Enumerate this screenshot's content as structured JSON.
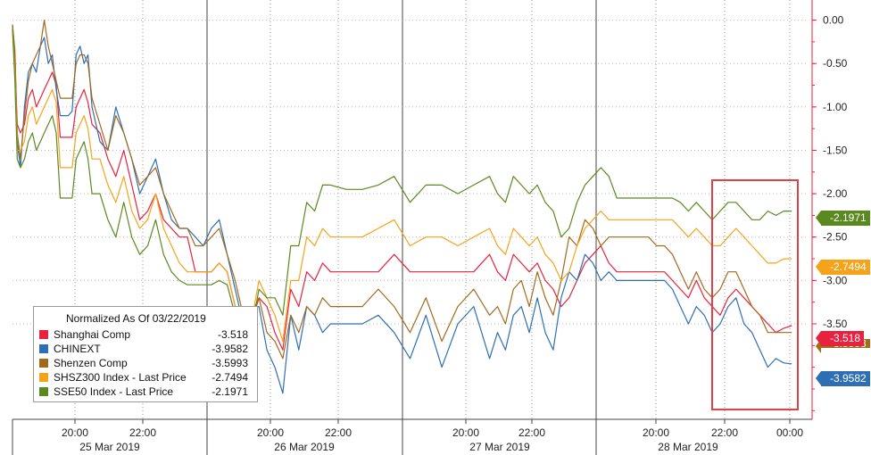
{
  "chart_data": {
    "type": "line",
    "title": "",
    "xlabel": "",
    "ylabel": "",
    "ylim": [
      -4.6,
      0.15
    ],
    "yticks": [
      "0.00",
      "-0.50",
      "-1.00",
      "-1.50",
      "-2.00",
      "-2.50",
      "-3.00",
      "-3.50"
    ],
    "ytick_values": [
      0,
      -0.5,
      -1.0,
      -1.5,
      -2.0,
      -2.5,
      -3.0,
      -3.5
    ],
    "time_ticks": [
      "20:00",
      "22:00",
      "20:00",
      "22:00",
      "20:00",
      "22:00",
      "20:00",
      "22:00",
      "00:00"
    ],
    "date_labels": [
      "25 Mar 2019",
      "26 Mar 2019",
      "27 Mar 2019",
      "28 Mar 2019"
    ],
    "legend": {
      "title": "Normalized As Of 03/22/2019",
      "placement": "bottom-left"
    },
    "series": [
      {
        "name": "Shanghai Comp",
        "color": "#e8223e",
        "last": "-3.518",
        "t": [
          0,
          0.3,
          0.6,
          1,
          1.5,
          2,
          2.5,
          3,
          3.5,
          4,
          4.5,
          5,
          5.5,
          6,
          6.5,
          7,
          7.5,
          8,
          8.5,
          9,
          9.5,
          10,
          11,
          12,
          13,
          14,
          15,
          16,
          17,
          18,
          19,
          20,
          21,
          22,
          23,
          24,
          25,
          26,
          27,
          28,
          29,
          30,
          31,
          32,
          33,
          34,
          35,
          36,
          37,
          38,
          39,
          40,
          42,
          44,
          46,
          48,
          50,
          52,
          54,
          56,
          58,
          60,
          61,
          62,
          63,
          64,
          65,
          66,
          67,
          68,
          69,
          70,
          71,
          72,
          73,
          74,
          75,
          76,
          77,
          78,
          79,
          80,
          81,
          82,
          83,
          84,
          85,
          86,
          87,
          88,
          89,
          90,
          91,
          92,
          93,
          94,
          95,
          96,
          97,
          98,
          99,
          100
        ],
        "v": [
          -0.1,
          -0.5,
          -1.2,
          -1.3,
          -1.2,
          -0.9,
          -0.8,
          -1.0,
          -0.9,
          -0.8,
          -0.7,
          -0.6,
          -0.75,
          -1.35,
          -1.35,
          -1.35,
          -1.35,
          -1.0,
          -0.9,
          -0.8,
          -0.95,
          -1.2,
          -1.3,
          -1.6,
          -1.8,
          -1.5,
          -1.9,
          -2.3,
          -2.2,
          -2.0,
          -2.3,
          -2.4,
          -2.5,
          -2.5,
          -2.9,
          -2.9,
          -2.9,
          -2.8,
          -2.9,
          -3.3,
          -3.4,
          -3.5,
          -3.2,
          -3.3,
          -3.6,
          -3.8,
          -3.1,
          -3.3,
          -2.9,
          -3.0,
          -2.8,
          -2.9,
          -2.9,
          -2.9,
          -2.9,
          -2.7,
          -2.9,
          -2.9,
          -2.9,
          -2.9,
          -2.9,
          -2.7,
          -2.9,
          -3.0,
          -2.7,
          -2.8,
          -2.9,
          -2.8,
          -3.0,
          -3.1,
          -3.3,
          -3.2,
          -3.0,
          -2.8,
          -2.7,
          -2.6,
          -2.8,
          -2.9,
          -2.9,
          -2.9,
          -2.9,
          -2.9,
          -2.9,
          -2.9,
          -3.0,
          -3.1,
          -3.2,
          -3.0,
          -3.2,
          -3.3,
          -3.4,
          -3.2,
          -3.1,
          -3.2,
          -3.3,
          -3.4,
          -3.5,
          -3.6,
          -3.55,
          -3.52
        ]
      },
      {
        "name": "CHINEXT",
        "color": "#2e6fb4",
        "last": "-3.9582",
        "t": [
          0,
          0.3,
          0.6,
          1,
          1.5,
          2,
          2.5,
          3,
          3.5,
          4,
          4.5,
          5,
          5.5,
          6,
          6.5,
          7,
          7.5,
          8,
          8.5,
          9,
          9.5,
          10,
          11,
          12,
          13,
          14,
          15,
          16,
          17,
          18,
          19,
          20,
          21,
          22,
          23,
          24,
          25,
          26,
          27,
          28,
          29,
          30,
          31,
          32,
          33,
          34,
          35,
          36,
          37,
          38,
          39,
          40,
          42,
          44,
          46,
          48,
          50,
          52,
          54,
          56,
          58,
          60,
          61,
          62,
          63,
          64,
          65,
          66,
          67,
          68,
          69,
          70,
          71,
          72,
          73,
          74,
          75,
          76,
          77,
          78,
          79,
          80,
          81,
          82,
          83,
          84,
          85,
          86,
          87,
          88,
          89,
          90,
          91,
          92,
          93,
          94,
          95,
          96,
          97,
          98,
          99,
          100
        ],
        "v": [
          -0.05,
          -0.4,
          -1.4,
          -1.7,
          -1.0,
          -0.6,
          -0.5,
          -0.6,
          -0.3,
          -0.2,
          -0.5,
          -0.4,
          -0.8,
          -1.1,
          -1.1,
          -1.1,
          -1.05,
          -0.4,
          -0.3,
          -0.5,
          -0.4,
          -1.0,
          -1.4,
          -1.5,
          -1.0,
          -1.3,
          -1.6,
          -2.0,
          -1.8,
          -1.6,
          -2.0,
          -2.3,
          -2.4,
          -2.4,
          -2.5,
          -2.6,
          -2.4,
          -2.3,
          -2.7,
          -3.1,
          -3.5,
          -3.3,
          -3.3,
          -3.8,
          -4.0,
          -4.3,
          -3.4,
          -3.8,
          -3.3,
          -3.4,
          -3.6,
          -3.5,
          -3.5,
          -3.5,
          -3.4,
          -3.6,
          -3.9,
          -3.4,
          -4.0,
          -3.5,
          -3.3,
          -3.9,
          -3.6,
          -3.8,
          -3.4,
          -3.3,
          -3.6,
          -3.2,
          -3.6,
          -3.8,
          -3.2,
          -2.9,
          -3.0,
          -2.7,
          -2.8,
          -3.0,
          -2.9,
          -3.0,
          -3.0,
          -3.0,
          -3.0,
          -3.0,
          -3.0,
          -3.0,
          -3.1,
          -3.3,
          -3.5,
          -3.3,
          -3.4,
          -3.6,
          -3.5,
          -3.3,
          -3.2,
          -3.5,
          -3.6,
          -3.8,
          -4.0,
          -3.9,
          -3.95,
          -3.96
        ]
      },
      {
        "name": "Shenzen Comp",
        "color": "#a36a1c",
        "last": "-3.5993",
        "t": [
          0,
          0.3,
          0.6,
          1,
          1.5,
          2,
          2.5,
          3,
          3.5,
          4,
          4.5,
          5,
          5.5,
          6,
          6.5,
          7,
          7.5,
          8,
          8.5,
          9,
          9.5,
          10,
          11,
          12,
          13,
          14,
          15,
          16,
          17,
          18,
          19,
          20,
          21,
          22,
          23,
          24,
          25,
          26,
          27,
          28,
          29,
          30,
          31,
          32,
          33,
          34,
          35,
          36,
          37,
          38,
          39,
          40,
          42,
          44,
          46,
          48,
          50,
          52,
          54,
          56,
          58,
          60,
          61,
          62,
          63,
          64,
          65,
          66,
          67,
          68,
          69,
          70,
          71,
          72,
          73,
          74,
          75,
          76,
          77,
          78,
          79,
          80,
          81,
          82,
          83,
          84,
          85,
          86,
          87,
          88,
          89,
          90,
          91,
          92,
          93,
          94,
          95,
          96,
          97,
          98,
          99,
          100
        ],
        "v": [
          -0.05,
          -0.35,
          -1.3,
          -1.6,
          -1.1,
          -0.7,
          -0.5,
          -0.4,
          -0.3,
          0.0,
          -0.3,
          -0.5,
          -0.7,
          -0.9,
          -0.9,
          -0.9,
          -0.9,
          -0.5,
          -0.4,
          -0.4,
          -0.5,
          -0.9,
          -1.2,
          -1.5,
          -1.1,
          -1.3,
          -1.6,
          -1.9,
          -1.8,
          -1.7,
          -2.0,
          -2.2,
          -2.4,
          -2.4,
          -2.6,
          -2.6,
          -2.5,
          -2.4,
          -2.7,
          -3.0,
          -3.4,
          -3.4,
          -3.2,
          -3.6,
          -3.7,
          -3.9,
          -3.4,
          -3.6,
          -3.3,
          -3.4,
          -3.2,
          -3.3,
          -3.3,
          -3.3,
          -3.1,
          -3.3,
          -3.6,
          -3.2,
          -3.7,
          -3.3,
          -3.1,
          -3.4,
          -3.3,
          -3.5,
          -3.1,
          -3.0,
          -3.3,
          -2.9,
          -3.2,
          -3.4,
          -3.0,
          -2.5,
          -2.6,
          -2.3,
          -2.4,
          -2.6,
          -2.5,
          -2.5,
          -2.5,
          -2.5,
          -2.5,
          -2.5,
          -2.6,
          -2.6,
          -2.7,
          -2.9,
          -3.1,
          -2.9,
          -3.1,
          -3.2,
          -3.1,
          -2.9,
          -2.9,
          -3.1,
          -3.3,
          -3.4,
          -3.6,
          -3.6,
          -3.6,
          -3.6
        ]
      },
      {
        "name": "SHSZ300 Index - Last Price",
        "color": "#f5a31a",
        "last": "-2.7494",
        "t": [
          0,
          0.3,
          0.6,
          1,
          1.5,
          2,
          2.5,
          3,
          3.5,
          4,
          4.5,
          5,
          5.5,
          6,
          6.5,
          7,
          7.5,
          8,
          8.5,
          9,
          9.5,
          10,
          11,
          12,
          13,
          14,
          15,
          16,
          17,
          18,
          19,
          20,
          21,
          22,
          23,
          24,
          25,
          26,
          27,
          28,
          29,
          30,
          31,
          32,
          33,
          34,
          35,
          36,
          37,
          38,
          39,
          40,
          42,
          44,
          46,
          48,
          50,
          52,
          54,
          56,
          58,
          60,
          61,
          62,
          63,
          64,
          65,
          66,
          67,
          68,
          69,
          70,
          71,
          72,
          73,
          74,
          75,
          76,
          77,
          78,
          79,
          80,
          81,
          82,
          83,
          84,
          85,
          86,
          87,
          88,
          89,
          90,
          91,
          92,
          93,
          94,
          95,
          96,
          97,
          98,
          99,
          100
        ],
        "v": [
          -0.1,
          -0.6,
          -1.5,
          -1.5,
          -1.4,
          -1.1,
          -1.0,
          -1.2,
          -1.1,
          -1.0,
          -0.9,
          -0.8,
          -0.95,
          -1.7,
          -1.7,
          -1.7,
          -1.7,
          -1.3,
          -1.2,
          -1.1,
          -1.25,
          -1.6,
          -1.6,
          -1.9,
          -2.1,
          -1.8,
          -2.2,
          -2.4,
          -2.3,
          -2.0,
          -2.4,
          -2.6,
          -2.8,
          -2.9,
          -2.9,
          -2.9,
          -2.9,
          -2.8,
          -2.9,
          -3.3,
          -3.4,
          -3.5,
          -3.0,
          -3.2,
          -3.4,
          -3.7,
          -3.0,
          -3.0,
          -2.5,
          -2.6,
          -2.4,
          -2.5,
          -2.5,
          -2.5,
          -2.4,
          -2.3,
          -2.6,
          -2.5,
          -2.5,
          -2.6,
          -2.5,
          -2.4,
          -2.6,
          -2.7,
          -2.4,
          -2.5,
          -2.6,
          -2.5,
          -2.7,
          -2.8,
          -3.0,
          -2.9,
          -2.6,
          -2.4,
          -2.3,
          -2.2,
          -2.3,
          -2.3,
          -2.3,
          -2.3,
          -2.3,
          -2.3,
          -2.3,
          -2.3,
          -2.3,
          -2.4,
          -2.5,
          -2.4,
          -2.5,
          -2.6,
          -2.6,
          -2.5,
          -2.4,
          -2.5,
          -2.6,
          -2.7,
          -2.8,
          -2.8,
          -2.75,
          -2.75
        ]
      },
      {
        "name": "SSE50 Index - Last Price",
        "color": "#5a8a1f",
        "last": "-2.1971",
        "t": [
          0,
          0.3,
          0.6,
          1,
          1.5,
          2,
          2.5,
          3,
          3.5,
          4,
          4.5,
          5,
          5.5,
          6,
          6.5,
          7,
          7.5,
          8,
          8.5,
          9,
          9.5,
          10,
          11,
          12,
          13,
          14,
          15,
          16,
          17,
          18,
          19,
          20,
          21,
          22,
          23,
          24,
          25,
          26,
          27,
          28,
          29,
          30,
          31,
          32,
          33,
          34,
          35,
          36,
          37,
          38,
          39,
          40,
          42,
          44,
          46,
          48,
          50,
          52,
          54,
          56,
          58,
          60,
          61,
          62,
          63,
          64,
          65,
          66,
          67,
          68,
          69,
          70,
          71,
          72,
          73,
          74,
          75,
          76,
          77,
          78,
          79,
          80,
          81,
          82,
          83,
          84,
          85,
          86,
          87,
          88,
          89,
          90,
          91,
          92,
          93,
          94,
          95,
          96,
          97,
          98,
          99,
          100
        ],
        "v": [
          -0.1,
          -0.7,
          -1.6,
          -1.7,
          -1.6,
          -1.4,
          -1.3,
          -1.5,
          -1.4,
          -1.3,
          -1.2,
          -1.1,
          -1.3,
          -2.05,
          -2.05,
          -2.05,
          -2.05,
          -1.6,
          -1.5,
          -1.4,
          -1.6,
          -2.0,
          -2.0,
          -2.3,
          -2.5,
          -2.1,
          -2.5,
          -2.7,
          -2.6,
          -2.3,
          -2.7,
          -2.9,
          -3.0,
          -3.05,
          -3.05,
          -3.05,
          -3.05,
          -3.0,
          -3.05,
          -3.4,
          -3.5,
          -3.6,
          -3.1,
          -3.2,
          -3.2,
          -3.4,
          -2.6,
          -2.6,
          -2.1,
          -2.2,
          -1.9,
          -1.9,
          -1.95,
          -1.95,
          -1.9,
          -1.8,
          -2.1,
          -1.9,
          -1.9,
          -2.0,
          -1.9,
          -1.8,
          -2.0,
          -2.1,
          -1.8,
          -1.9,
          -2.0,
          -1.9,
          -2.1,
          -2.2,
          -2.5,
          -2.4,
          -2.1,
          -1.9,
          -1.8,
          -1.7,
          -1.8,
          -2.05,
          -2.05,
          -2.05,
          -2.05,
          -2.05,
          -2.05,
          -2.05,
          -2.05,
          -2.1,
          -2.2,
          -2.1,
          -2.2,
          -2.3,
          -2.2,
          -2.1,
          -2.1,
          -2.2,
          -2.3,
          -2.3,
          -2.2,
          -2.25,
          -2.2,
          -2.2
        ]
      }
    ]
  }
}
